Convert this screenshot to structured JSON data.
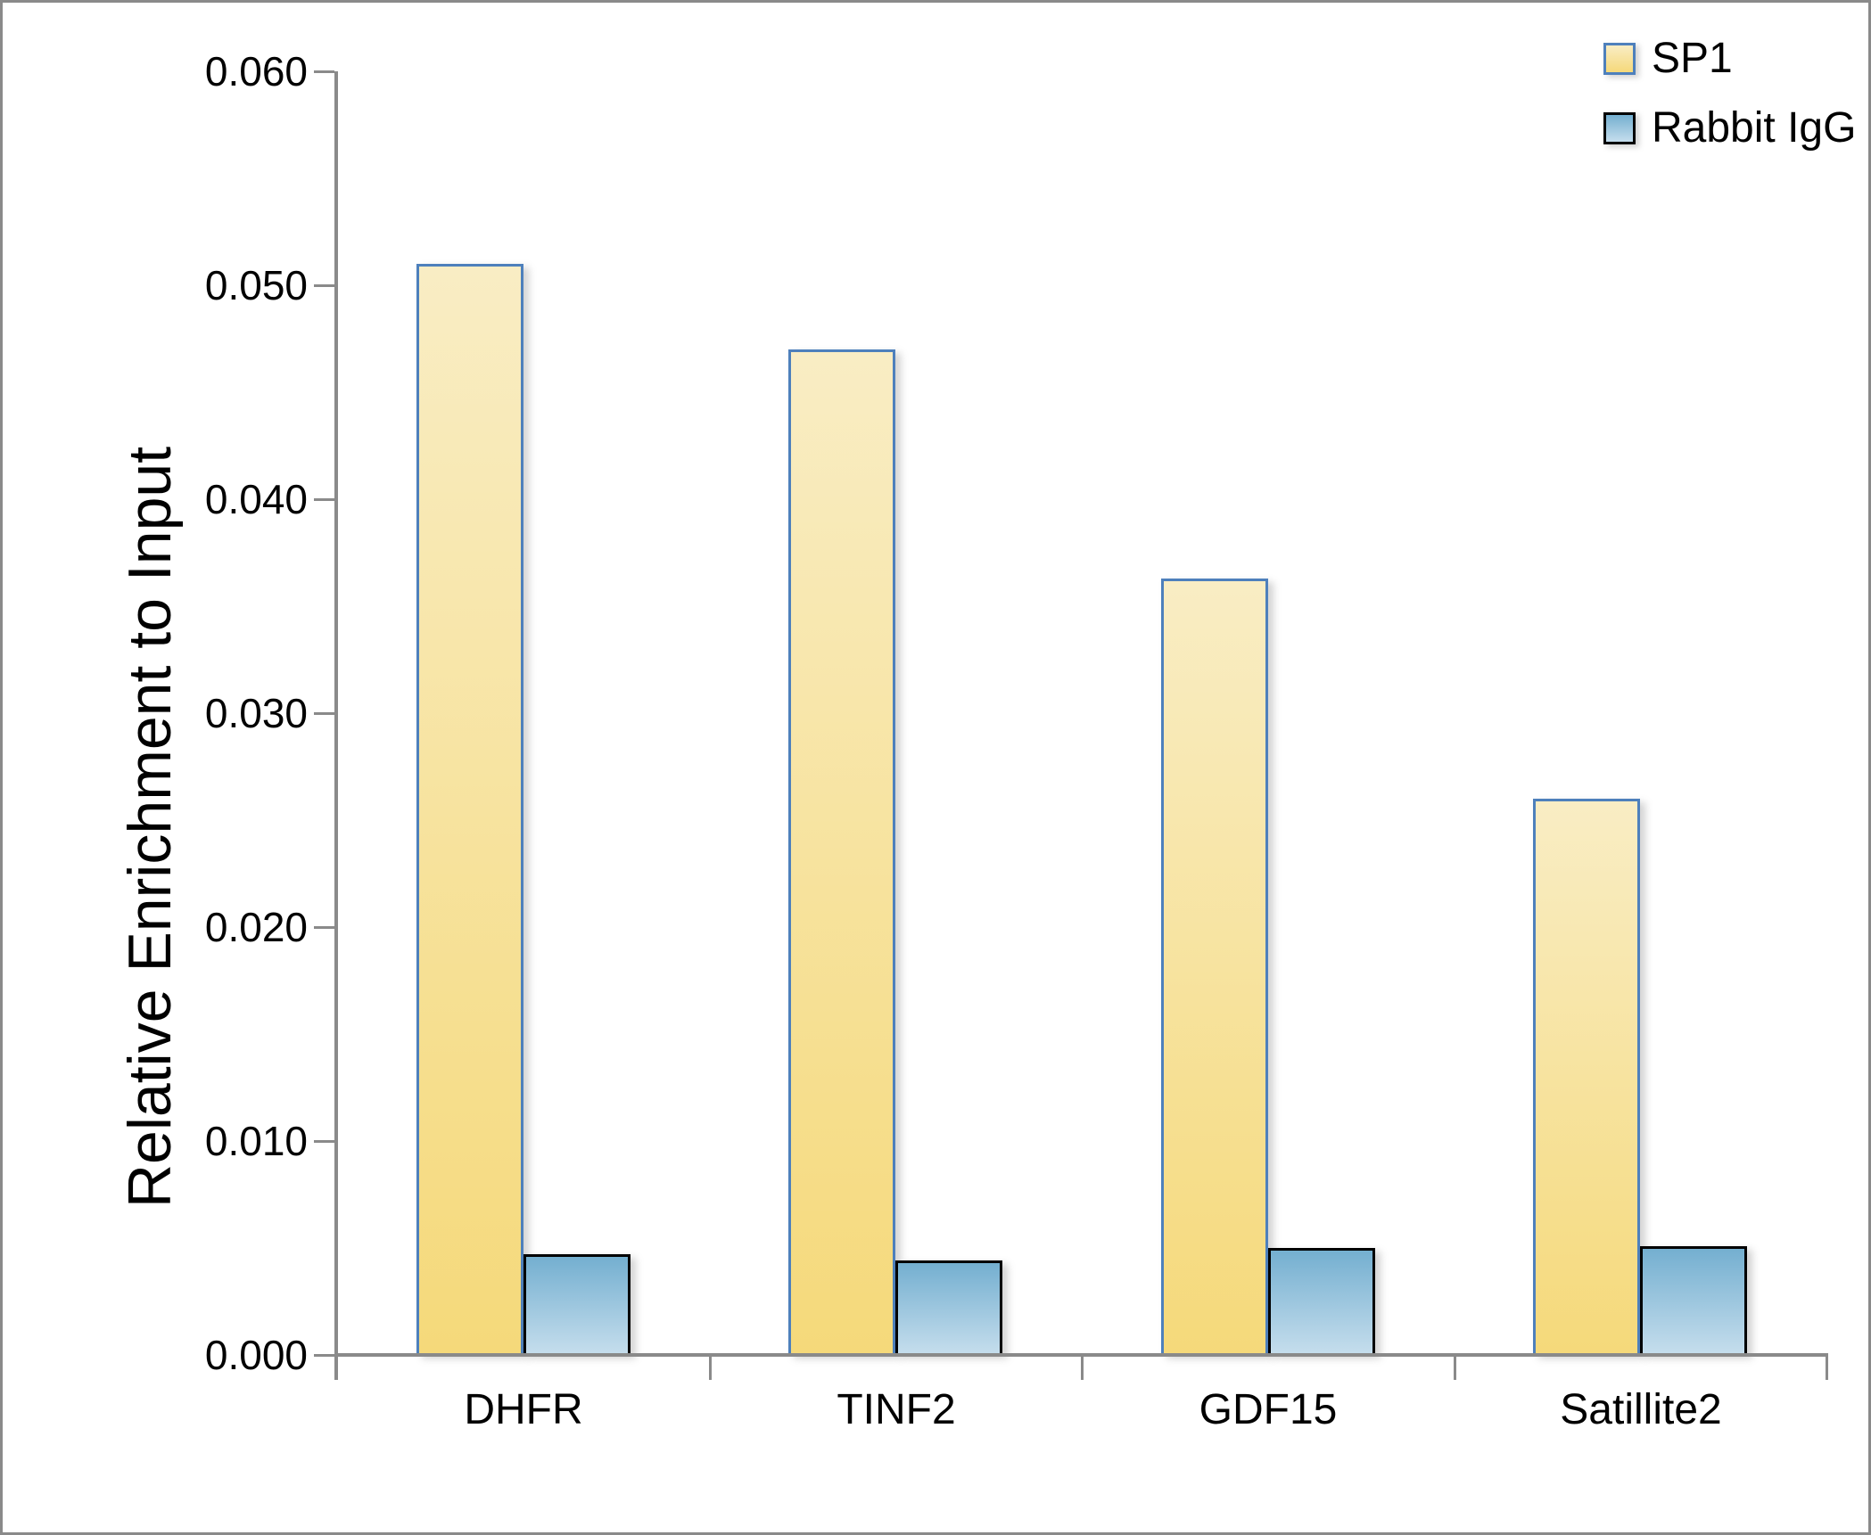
{
  "frame": {
    "background": "#ffffff",
    "border_color": "#8a8a8a"
  },
  "chart_data": {
    "type": "bar",
    "title": "",
    "categories": [
      "DHFR",
      "TINF2",
      "GDF15",
      "Satillite2"
    ],
    "series": [
      {
        "name": "SP1",
        "values": [
          0.051,
          0.047,
          0.0363,
          0.026
        ],
        "fill_top": "#F9EDC4",
        "fill_bottom": "#F5D97A",
        "border_color": "#4E80BC"
      },
      {
        "name": "Rabbit IgG",
        "values": [
          0.0047,
          0.0044,
          0.005,
          0.0051
        ],
        "fill_top": "#74AFD0",
        "fill_bottom": "#C6DEED",
        "border_color": "#000000"
      }
    ],
    "xlabel": "",
    "ylabel": "Relative Enrichment to Input",
    "ylim": [
      0,
      0.06
    ],
    "ytick_step": 0.01,
    "ytick_labels": [
      "0.000",
      "0.010",
      "0.020",
      "0.030",
      "0.040",
      "0.050",
      "0.060"
    ],
    "grid": false,
    "legend_position": "top-right",
    "axis_color": "#8a8a8a",
    "text_color": "#000000"
  }
}
